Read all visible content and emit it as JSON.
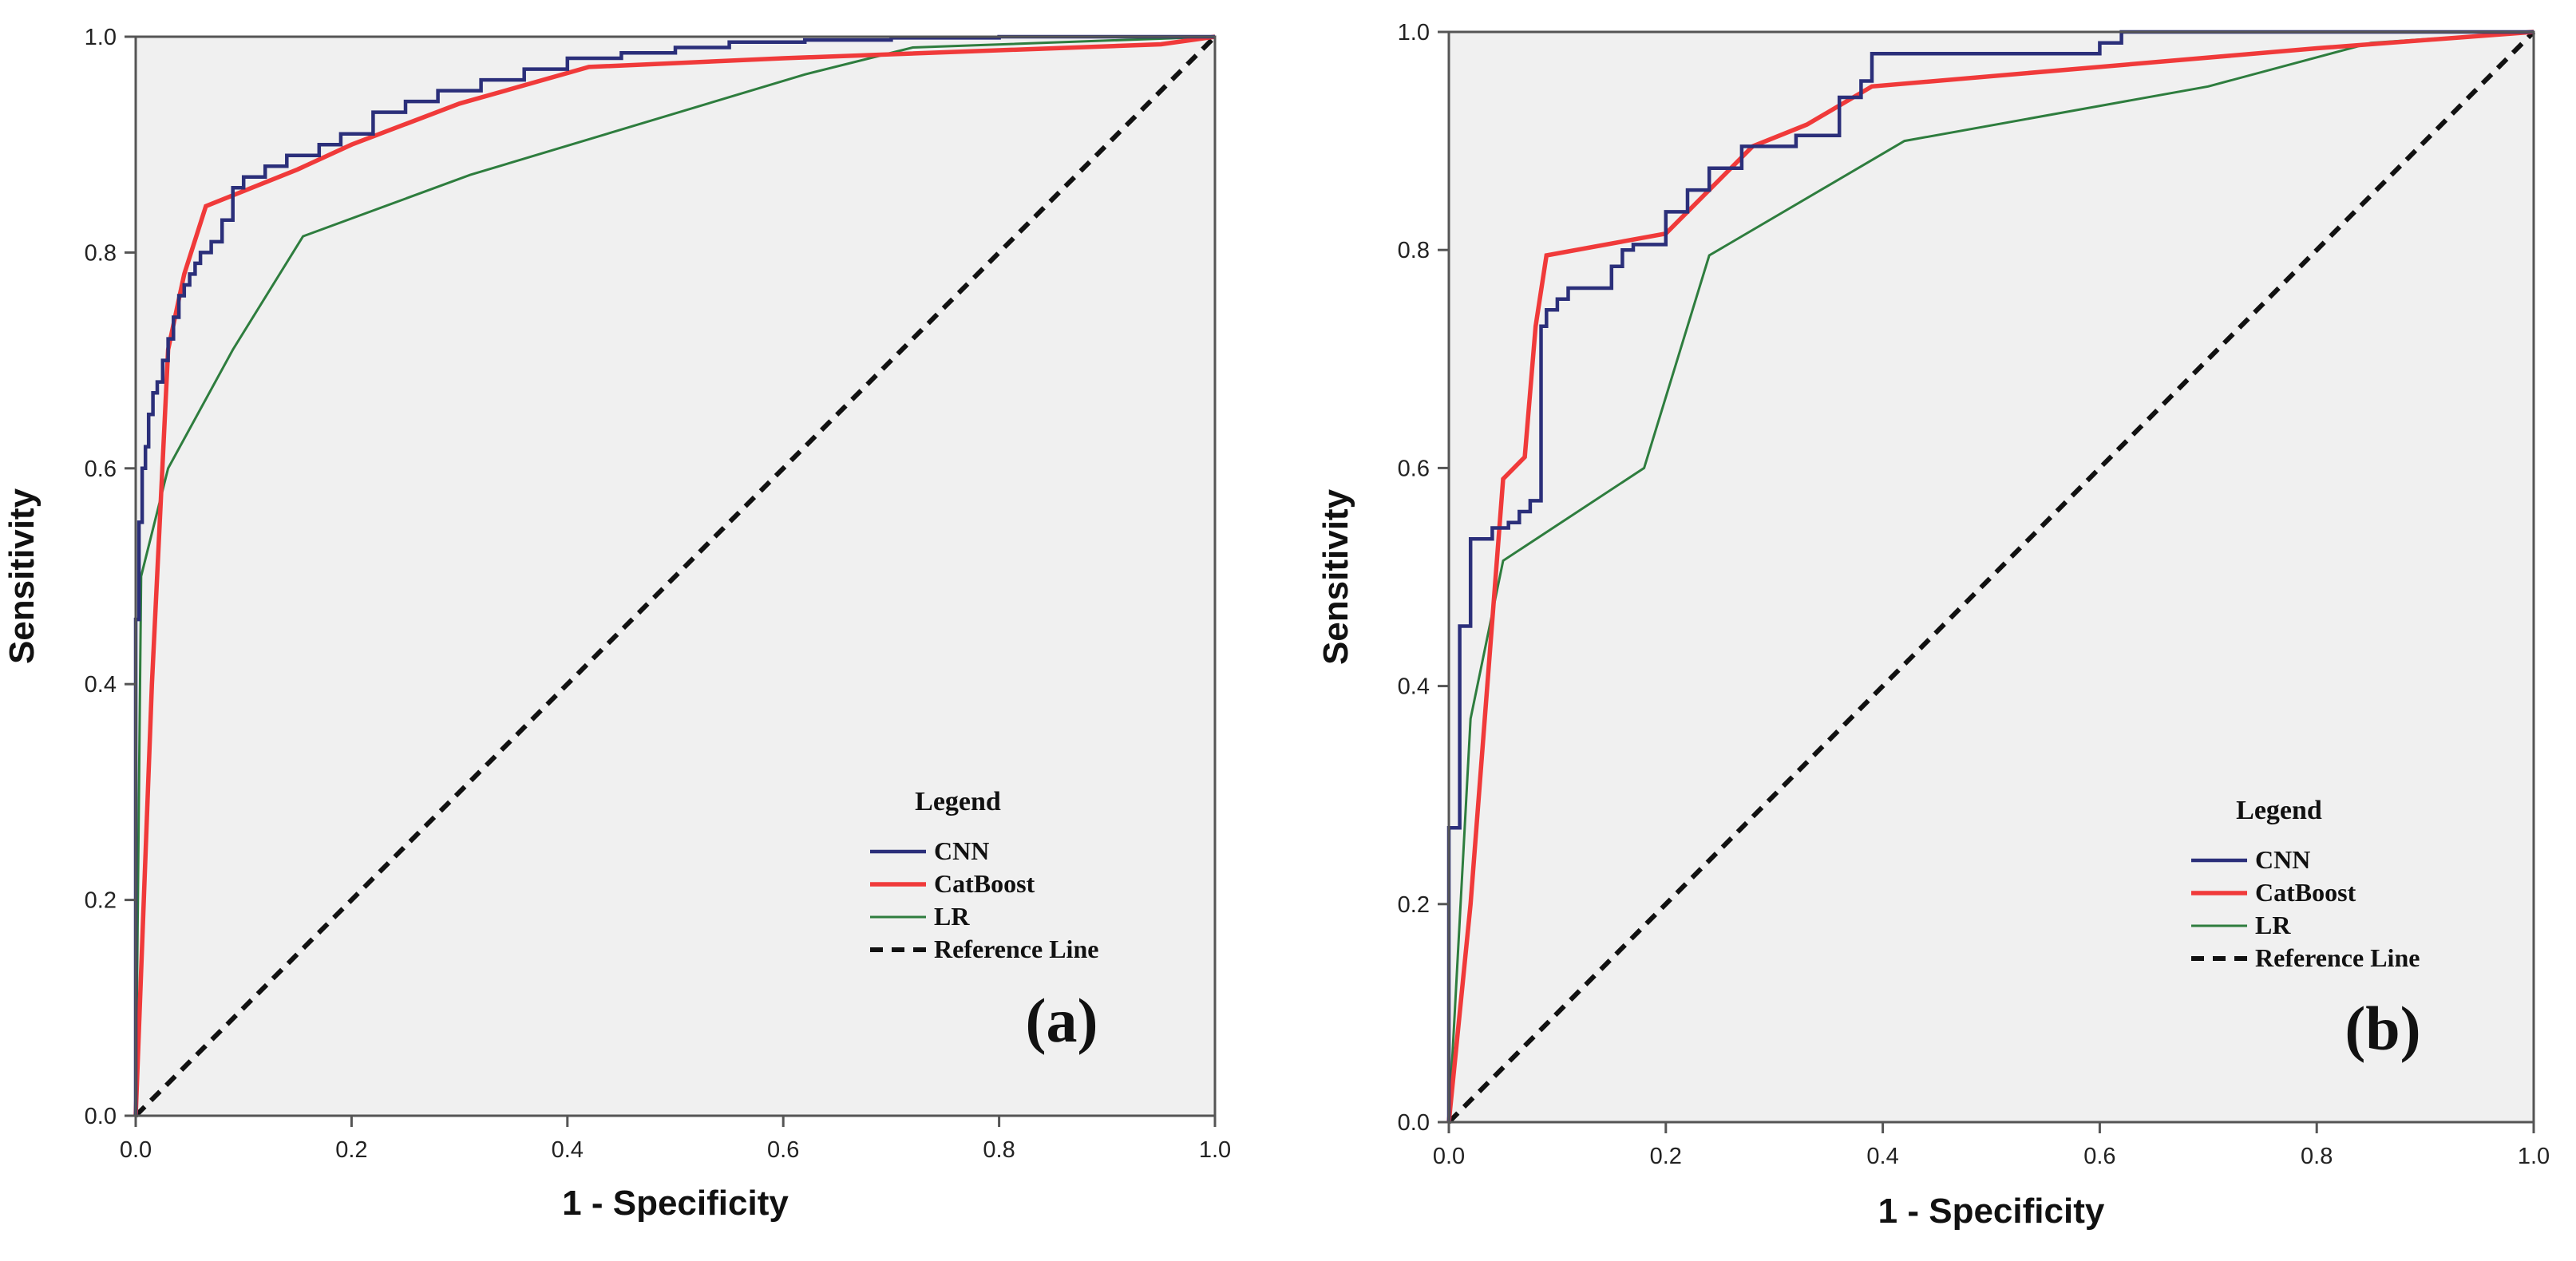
{
  "colors": {
    "plot_bg": "#f0f0f0",
    "axis": "#555555",
    "CNN": "#2b2f7a",
    "CatBoost": "#f03a3a",
    "LR": "#2e7d3e",
    "Reference Line": "#111111"
  },
  "chart_data": [
    {
      "type": "line",
      "panel_label": "(a)",
      "xlabel": "1 - Specificity",
      "ylabel": "Sensitivity",
      "xlim": [
        0,
        1
      ],
      "ylim": [
        0,
        1
      ],
      "xticks": [
        "0.0",
        "0.2",
        "0.4",
        "0.6",
        "0.8",
        "1.0"
      ],
      "yticks": [
        "0.0",
        "0.2",
        "0.4",
        "0.6",
        "0.8",
        "1.0"
      ],
      "legend": {
        "title": "Legend",
        "entries": [
          "CNN",
          "CatBoost",
          "LR",
          "Reference Line"
        ],
        "location": "lower-right"
      },
      "series": [
        {
          "name": "CNN",
          "step": true,
          "x": [
            0,
            0,
            0.003,
            0.003,
            0.006,
            0.006,
            0.009,
            0.009,
            0.012,
            0.012,
            0.016,
            0.016,
            0.02,
            0.02,
            0.025,
            0.025,
            0.03,
            0.03,
            0.035,
            0.035,
            0.04,
            0.04,
            0.045,
            0.045,
            0.05,
            0.05,
            0.055,
            0.055,
            0.06,
            0.06,
            0.07,
            0.07,
            0.08,
            0.08,
            0.09,
            0.09,
            0.1,
            0.1,
            0.12,
            0.12,
            0.14,
            0.14,
            0.17,
            0.17,
            0.19,
            0.19,
            0.22,
            0.22,
            0.25,
            0.25,
            0.28,
            0.28,
            0.32,
            0.32,
            0.36,
            0.36,
            0.4,
            0.4,
            0.45,
            0.45,
            0.5,
            0.5,
            0.55,
            0.55,
            0.62,
            0.62,
            0.7,
            0.7,
            0.8,
            0.8,
            1.0
          ],
          "y": [
            0,
            0.46,
            0.46,
            0.55,
            0.55,
            0.6,
            0.6,
            0.62,
            0.62,
            0.65,
            0.65,
            0.67,
            0.67,
            0.68,
            0.68,
            0.7,
            0.7,
            0.72,
            0.72,
            0.74,
            0.74,
            0.76,
            0.76,
            0.77,
            0.77,
            0.78,
            0.78,
            0.79,
            0.79,
            0.8,
            0.8,
            0.81,
            0.81,
            0.83,
            0.83,
            0.86,
            0.86,
            0.87,
            0.87,
            0.88,
            0.88,
            0.89,
            0.89,
            0.9,
            0.9,
            0.91,
            0.91,
            0.93,
            0.93,
            0.94,
            0.94,
            0.95,
            0.95,
            0.96,
            0.96,
            0.97,
            0.97,
            0.98,
            0.98,
            0.985,
            0.985,
            0.99,
            0.99,
            0.995,
            0.995,
            0.997,
            0.997,
            0.999,
            0.999,
            1.0,
            1.0
          ]
        },
        {
          "name": "CatBoost",
          "x": [
            0,
            0.015,
            0.03,
            0.045,
            0.065,
            0.15,
            0.2,
            0.3,
            0.42,
            0.6,
            0.95,
            1.0
          ],
          "y": [
            0,
            0.4,
            0.71,
            0.78,
            0.843,
            0.877,
            0.9,
            0.938,
            0.972,
            0.98,
            0.993,
            1.0
          ]
        },
        {
          "name": "LR",
          "x": [
            0,
            0.005,
            0.03,
            0.09,
            0.155,
            0.31,
            0.62,
            0.72,
            1.0
          ],
          "y": [
            0,
            0.5,
            0.6,
            0.71,
            0.815,
            0.872,
            0.965,
            0.99,
            1.0
          ]
        },
        {
          "name": "Reference Line",
          "x": [
            0,
            1
          ],
          "y": [
            0,
            1
          ]
        }
      ]
    },
    {
      "type": "line",
      "panel_label": "(b)",
      "xlabel": "1 - Specificity",
      "ylabel": "Sensitivity",
      "xlim": [
        0,
        1
      ],
      "ylim": [
        0,
        1
      ],
      "xticks": [
        "0.0",
        "0.2",
        "0.4",
        "0.6",
        "0.8",
        "1.0"
      ],
      "yticks": [
        "0.0",
        "0.2",
        "0.4",
        "0.6",
        "0.8",
        "1.0"
      ],
      "legend": {
        "title": "Legend",
        "entries": [
          "CNN",
          "CatBoost",
          "LR",
          "Reference Line"
        ],
        "location": "lower-right"
      },
      "series": [
        {
          "name": "CNN",
          "step": true,
          "x": [
            0,
            0,
            0.01,
            0.01,
            0.02,
            0.02,
            0.04,
            0.04,
            0.055,
            0.055,
            0.065,
            0.065,
            0.075,
            0.075,
            0.085,
            0.085,
            0.09,
            0.09,
            0.1,
            0.1,
            0.11,
            0.11,
            0.15,
            0.15,
            0.16,
            0.16,
            0.17,
            0.17,
            0.2,
            0.2,
            0.22,
            0.22,
            0.24,
            0.24,
            0.27,
            0.27,
            0.32,
            0.32,
            0.36,
            0.36,
            0.38,
            0.38,
            0.39,
            0.39,
            0.6,
            0.6,
            0.62,
            0.62,
            1.0
          ],
          "y": [
            0,
            0.27,
            0.27,
            0.455,
            0.455,
            0.535,
            0.535,
            0.545,
            0.545,
            0.55,
            0.55,
            0.56,
            0.56,
            0.57,
            0.57,
            0.73,
            0.73,
            0.745,
            0.745,
            0.755,
            0.755,
            0.765,
            0.765,
            0.785,
            0.785,
            0.8,
            0.8,
            0.805,
            0.805,
            0.835,
            0.835,
            0.855,
            0.855,
            0.875,
            0.875,
            0.895,
            0.895,
            0.905,
            0.905,
            0.94,
            0.94,
            0.955,
            0.955,
            0.98,
            0.98,
            0.99,
            0.99,
            1.0,
            1.0
          ]
        },
        {
          "name": "CatBoost",
          "x": [
            0,
            0.02,
            0.05,
            0.07,
            0.08,
            0.09,
            0.2,
            0.28,
            0.33,
            0.39,
            0.8,
            1.0
          ],
          "y": [
            0,
            0.2,
            0.59,
            0.61,
            0.73,
            0.795,
            0.815,
            0.895,
            0.915,
            0.95,
            0.985,
            1.0
          ]
        },
        {
          "name": "LR",
          "x": [
            0,
            0.02,
            0.05,
            0.18,
            0.24,
            0.42,
            0.7,
            0.85,
            1.0
          ],
          "y": [
            0,
            0.37,
            0.515,
            0.6,
            0.795,
            0.9,
            0.95,
            0.99,
            1.0
          ]
        },
        {
          "name": "Reference Line",
          "x": [
            0,
            1
          ],
          "y": [
            0,
            1
          ]
        }
      ]
    }
  ]
}
